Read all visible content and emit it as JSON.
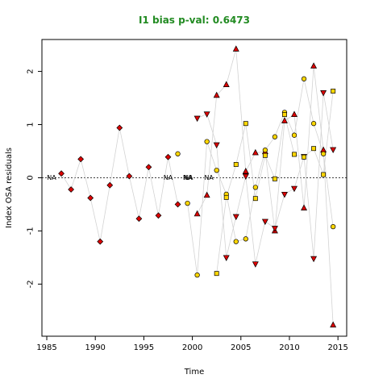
{
  "chart_data": {
    "type": "scatter",
    "title": "I1 bias p-val: 0.6473",
    "xlabel": "Time",
    "ylabel": "Index OSA residuals",
    "xlim": [
      1984.5,
      2015.9
    ],
    "ylim": [
      -2.98,
      2.6
    ],
    "xticks": [
      1985,
      1990,
      1995,
      2000,
      2005,
      2010,
      2015
    ],
    "yticks": [
      -2,
      -1,
      0,
      1,
      2
    ],
    "reference_line": 0,
    "grid": false,
    "colors": {
      "title": "#228B22",
      "red_marker": "#dd0000",
      "yellow_marker": "#ffd700",
      "connector": "#d3d3d3"
    },
    "na_labels": [
      {
        "x": 1985.5,
        "text": "NA"
      },
      {
        "x": 1997.5,
        "text": "NA"
      },
      {
        "x": 1999.5,
        "text": "NA"
      },
      {
        "x": 1999.6,
        "text": "NA"
      },
      {
        "x": 2001.7,
        "text": "NA"
      }
    ],
    "series": [
      {
        "marker": "diamond",
        "color": "red",
        "x": [
          1986.5,
          1987.5,
          1988.5,
          1989.5,
          1990.5,
          1991.5,
          1992.5,
          1993.5,
          1994.5,
          1995.5,
          1996.5,
          1997.5,
          1998.5
        ],
        "y": [
          0.08,
          -0.22,
          0.35,
          -0.38,
          -1.2,
          -0.14,
          0.94,
          0.03,
          -0.77,
          0.2,
          -0.71,
          0.39,
          -0.5
        ]
      },
      {
        "marker": "triangle-up",
        "color": "red",
        "x": [
          2000.5,
          2001.5,
          2002.5,
          2003.5,
          2004.5,
          2005.5,
          2006.5,
          2007.5,
          2008.5,
          2009.5,
          2010.5,
          2011.5,
          2012.5,
          2013.5,
          2014.5
        ],
        "y": [
          -0.68,
          -0.33,
          1.55,
          1.75,
          2.42,
          0.12,
          0.47,
          0.49,
          -1.0,
          1.07,
          1.19,
          -0.57,
          2.1,
          0.52,
          -2.77
        ]
      },
      {
        "marker": "triangle-down",
        "color": "red",
        "x": [
          2000.5,
          2001.5,
          2002.5,
          2003.5,
          2004.5,
          2005.5,
          2006.5,
          2007.5,
          2008.5,
          2009.5,
          2010.5,
          2011.5,
          2012.5,
          2013.5,
          2014.5
        ],
        "y": [
          1.12,
          1.2,
          0.62,
          -1.5,
          -0.73,
          0.03,
          -1.62,
          -0.82,
          -0.95,
          -0.31,
          -0.2,
          0.4,
          -1.52,
          1.6,
          0.53
        ]
      },
      {
        "marker": "circle",
        "color": "yellow",
        "x": [
          1999.5,
          2000.5,
          2001.5,
          2002.5,
          2003.5,
          2004.5,
          2005.5,
          2006.5,
          2007.5,
          2008.5,
          2009.5,
          2010.5,
          2011.5,
          2012.5,
          2013.5,
          2014.5
        ],
        "y": [
          -0.48,
          -1.83,
          0.68,
          0.14,
          -0.31,
          -1.2,
          -1.15,
          -0.18,
          0.52,
          0.77,
          1.23,
          0.8,
          1.86,
          1.02,
          0.45,
          -0.92
        ]
      },
      {
        "marker": "square",
        "color": "yellow",
        "x": [
          2002.5,
          2003.5,
          2004.5,
          2005.5,
          2006.5,
          2007.5,
          2008.5,
          2009.5,
          2010.5,
          2011.5,
          2012.5,
          2013.5,
          2014.5
        ],
        "y": [
          -1.8,
          -0.37,
          0.25,
          1.02,
          -0.39,
          0.42,
          -0.02,
          1.19,
          0.44,
          0.39,
          0.55,
          0.06,
          1.63
        ]
      },
      {
        "marker": "circle",
        "color": "yellow",
        "x": [
          1998.5
        ],
        "y": [
          0.45
        ]
      }
    ]
  }
}
